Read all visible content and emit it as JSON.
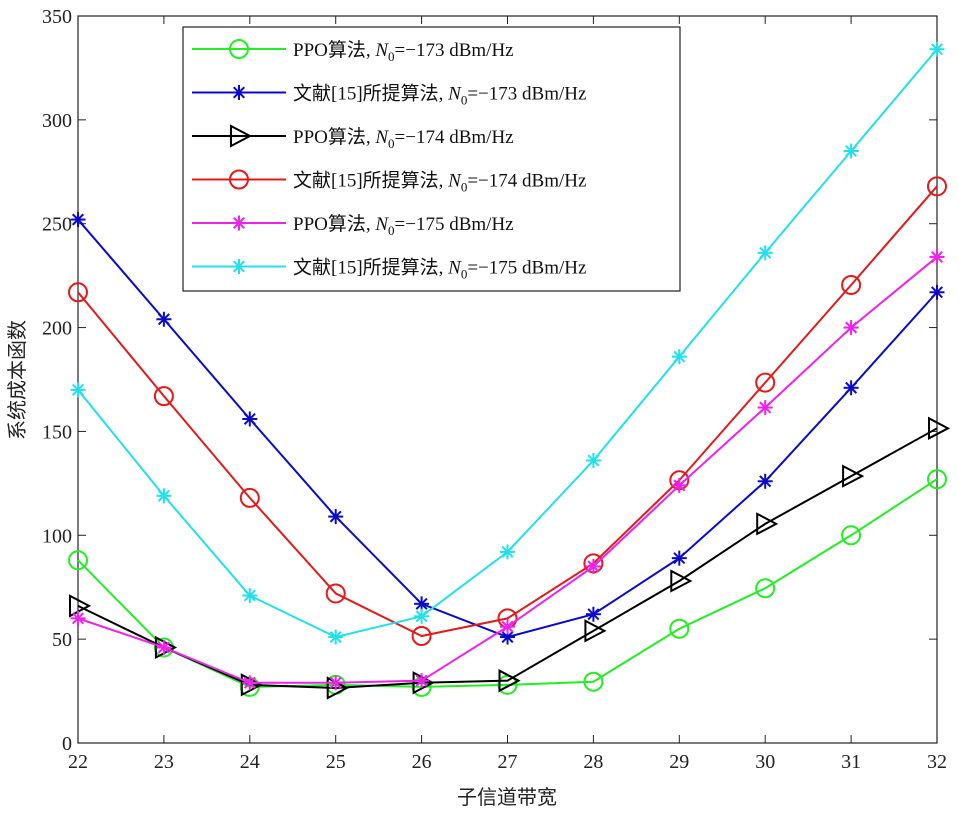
{
  "chart_data": {
    "type": "line",
    "title": "",
    "xlabel": "子信道带宽",
    "ylabel": "系统成本函数",
    "x": [
      22,
      23,
      24,
      25,
      26,
      27,
      28,
      29,
      30,
      31,
      32
    ],
    "xlim": [
      22,
      32
    ],
    "ylim": [
      0,
      350
    ],
    "xticks": [
      22,
      23,
      24,
      25,
      26,
      27,
      28,
      29,
      30,
      31,
      32
    ],
    "yticks": [
      0,
      50,
      100,
      150,
      200,
      250,
      300,
      350
    ],
    "grid": false,
    "legend_position": "top-left",
    "series": [
      {
        "name": "PPO算法, N0=−173 dBm/Hz",
        "legend_parts": {
          "prefix": "PPO算法, ",
          "sub_var": "N",
          "sub": "0",
          "suffix": "=−173 dBm/Hz"
        },
        "color": "#22ee22",
        "marker": "circle",
        "values": [
          88,
          46,
          27,
          28,
          27,
          28,
          29.5,
          55,
          74.5,
          100,
          127
        ]
      },
      {
        "name": "文献[15]所提算法, N0=−173 dBm/Hz",
        "legend_parts": {
          "prefix": "文献[15]所提算法, ",
          "sub_var": "N",
          "sub": "0",
          "suffix": "=−173 dBm/Hz"
        },
        "color": "#0a0acd",
        "marker": "asterisk",
        "values": [
          252,
          204,
          156,
          109,
          67,
          51,
          62,
          89,
          126,
          171,
          217
        ]
      },
      {
        "name": "PPO算法, N0=−174 dBm/Hz",
        "legend_parts": {
          "prefix": "PPO算法, ",
          "sub_var": "N",
          "sub": "0",
          "suffix": "=−174 dBm/Hz"
        },
        "color": "#000000",
        "marker": "triangle-right",
        "values": [
          66,
          46,
          28,
          26.5,
          29,
          30,
          54,
          78,
          105.5,
          128.5,
          151.5
        ]
      },
      {
        "name": "文献[15]所提算法, N0=−174 dBm/Hz",
        "legend_parts": {
          "prefix": "文献[15]所提算法, ",
          "sub_var": "N",
          "sub": "0",
          "suffix": "=−174 dBm/Hz"
        },
        "color": "#e41a1a",
        "marker": "circle",
        "values": [
          217,
          167,
          118,
          72,
          51.5,
          60,
          86.5,
          126.5,
          173.5,
          220.5,
          268
        ]
      },
      {
        "name": "PPO算法, N0=−175 dBm/Hz",
        "legend_parts": {
          "prefix": "PPO算法, ",
          "sub_var": "N",
          "sub": "0",
          "suffix": "=−175 dBm/Hz"
        },
        "color": "#ee22ee",
        "marker": "asterisk",
        "values": [
          60,
          46,
          29,
          29,
          30,
          56,
          85,
          124,
          161.5,
          200,
          234
        ]
      },
      {
        "name": "文献[15]所提算法, N0=−175 dBm/Hz",
        "legend_parts": {
          "prefix": "文献[15]所提算法, ",
          "sub_var": "N",
          "sub": "0",
          "suffix": "=−175 dBm/Hz"
        },
        "color": "#22e0ee",
        "marker": "asterisk",
        "values": [
          170,
          119,
          71,
          51,
          61,
          92,
          136,
          186,
          236,
          285,
          334
        ]
      }
    ]
  }
}
